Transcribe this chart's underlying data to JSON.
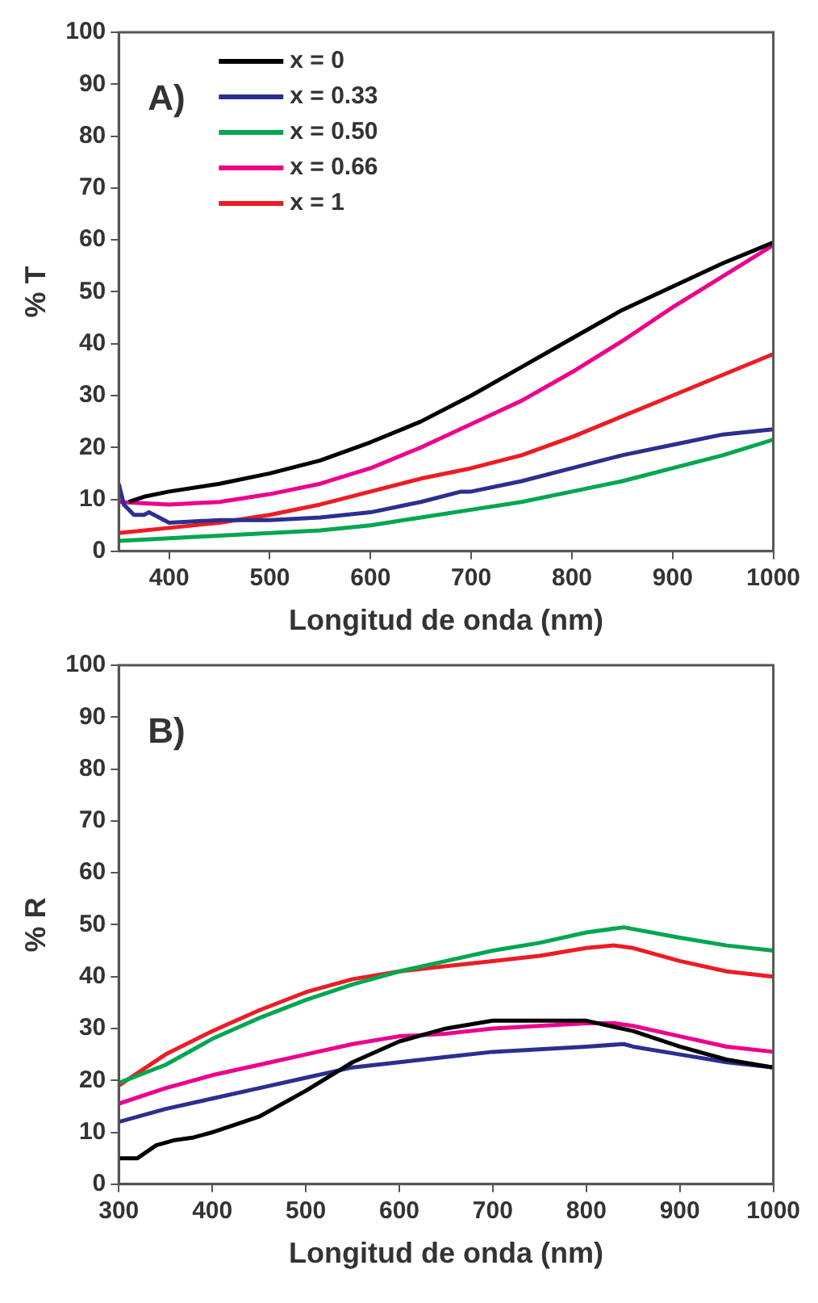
{
  "chart_data": [
    {
      "type": "line",
      "ylabel": "% T",
      "xlabel": "Longitud de onda (nm)",
      "annotations": [
        "A)"
      ],
      "xlim": [
        350,
        1000
      ],
      "xticks": [
        400,
        500,
        600,
        700,
        800,
        900,
        1000
      ],
      "ylim": [
        0,
        100
      ],
      "yticks": [
        0,
        10,
        20,
        30,
        40,
        50,
        60,
        70,
        80,
        90,
        100
      ],
      "grid": false,
      "legend": "top left",
      "line_style": "solid",
      "series": [
        {
          "name": "x = 0",
          "color": "#000000",
          "x": [
            360,
            375,
            400,
            450,
            500,
            550,
            600,
            650,
            700,
            750,
            800,
            850,
            900,
            950,
            1000
          ],
          "values": [
            9.5,
            10.5,
            11.5,
            13,
            15,
            17.5,
            21,
            25,
            30,
            35.5,
            41,
            46.5,
            51,
            55.5,
            59.5
          ]
        },
        {
          "name": "x = 0.33",
          "color": "#2b2f8f",
          "x": [
            350,
            355,
            365,
            375,
            380,
            390,
            400,
            450,
            500,
            550,
            600,
            650,
            690,
            700,
            750,
            800,
            850,
            900,
            950,
            1000
          ],
          "values": [
            13,
            9,
            7,
            7,
            7.5,
            6.5,
            5.5,
            6,
            6,
            6.5,
            7.5,
            9.5,
            11.5,
            11.5,
            13.5,
            16,
            18.5,
            20.5,
            22.5,
            23.5
          ]
        },
        {
          "name": "x = 0.50",
          "color": "#00a650",
          "x": [
            350,
            400,
            450,
            500,
            550,
            600,
            650,
            700,
            750,
            800,
            850,
            900,
            950,
            1000
          ],
          "values": [
            2,
            2.5,
            3,
            3.5,
            4,
            5,
            6.5,
            8,
            9.5,
            11.5,
            13.5,
            16,
            18.5,
            21.5
          ]
        },
        {
          "name": "x = 0.66",
          "color": "#ec008c",
          "x": [
            350,
            400,
            450,
            500,
            550,
            600,
            650,
            700,
            750,
            800,
            850,
            900,
            950,
            1000
          ],
          "values": [
            9.5,
            9,
            9.5,
            11,
            13,
            16,
            20,
            24.5,
            29,
            34.5,
            40.5,
            47,
            53,
            59
          ]
        },
        {
          "name": "x = 1",
          "color": "#ed1c24",
          "x": [
            350,
            400,
            450,
            500,
            550,
            600,
            650,
            700,
            750,
            800,
            850,
            900,
            950,
            1000
          ],
          "values": [
            3.5,
            4.5,
            5.5,
            7,
            9,
            11.5,
            14,
            16,
            18.5,
            22,
            26,
            30,
            34,
            38
          ]
        }
      ]
    },
    {
      "type": "line",
      "ylabel": "% R",
      "xlabel": "Longitud de onda (nm)",
      "annotations": [
        "B)"
      ],
      "xlim": [
        300,
        1000
      ],
      "xticks": [
        300,
        400,
        500,
        600,
        700,
        800,
        900,
        1000
      ],
      "ylim": [
        0,
        100
      ],
      "yticks": [
        0,
        10,
        20,
        30,
        40,
        50,
        60,
        70,
        80,
        90,
        100
      ],
      "grid": false,
      "line_style": "solid",
      "series": [
        {
          "color": "#000000",
          "x": [
            300,
            320,
            340,
            360,
            380,
            400,
            450,
            500,
            550,
            600,
            650,
            700,
            750,
            800,
            850,
            900,
            950,
            1000
          ],
          "values": [
            5,
            5,
            7.5,
            8.5,
            9,
            10,
            13,
            18,
            23.5,
            27.5,
            30,
            31.5,
            31.5,
            31.5,
            29.5,
            26.5,
            24,
            22.5
          ]
        },
        {
          "color": "#2b2f8f",
          "x": [
            300,
            350,
            400,
            450,
            500,
            550,
            600,
            650,
            700,
            750,
            800,
            840,
            850,
            900,
            950,
            1000
          ],
          "values": [
            12,
            14.5,
            16.5,
            18.5,
            20.5,
            22.5,
            23.5,
            24.5,
            25.5,
            26,
            26.5,
            27,
            26.5,
            25,
            23.5,
            22.5
          ]
        },
        {
          "color": "#00a650",
          "x": [
            300,
            350,
            400,
            450,
            500,
            550,
            600,
            650,
            700,
            750,
            800,
            840,
            900,
            950,
            1000
          ],
          "values": [
            19.5,
            23,
            28,
            32,
            35.5,
            38.5,
            41,
            43,
            45,
            46.5,
            48.5,
            49.5,
            47.5,
            46,
            45
          ]
        },
        {
          "color": "#ec008c",
          "x": [
            300,
            350,
            400,
            450,
            500,
            550,
            600,
            650,
            700,
            750,
            800,
            830,
            850,
            900,
            950,
            1000
          ],
          "values": [
            15.5,
            18.5,
            21,
            23,
            25,
            27,
            28.5,
            29,
            30,
            30.5,
            31,
            31,
            30.5,
            28.5,
            26.5,
            25.5
          ]
        },
        {
          "color": "#ed1c24",
          "x": [
            300,
            350,
            400,
            450,
            500,
            550,
            600,
            650,
            700,
            750,
            800,
            830,
            850,
            900,
            950,
            1000
          ],
          "values": [
            19,
            25,
            29.5,
            33.5,
            37,
            39.5,
            41,
            42,
            43,
            44,
            45.5,
            46,
            45.5,
            43,
            41,
            40
          ]
        }
      ]
    }
  ]
}
